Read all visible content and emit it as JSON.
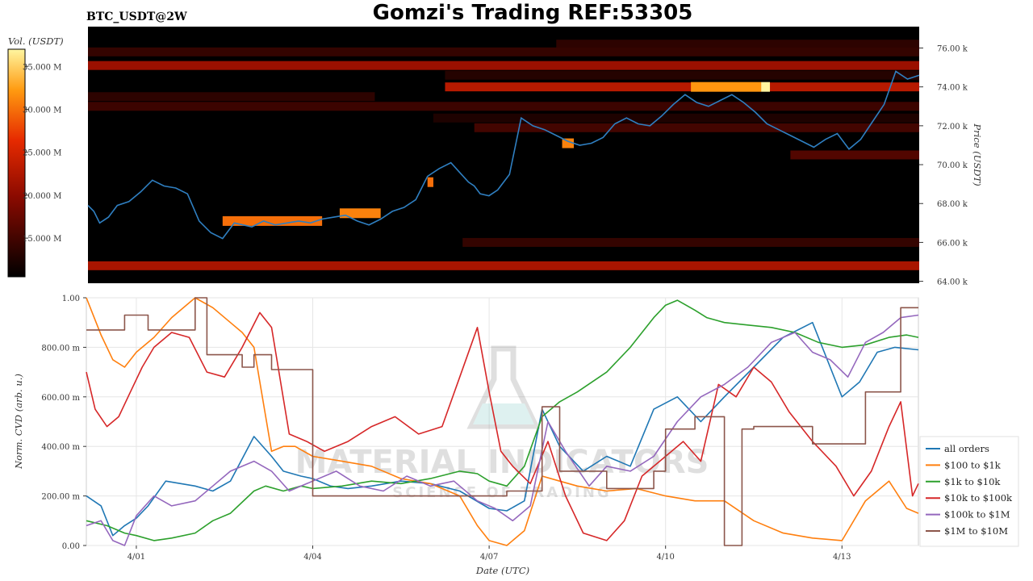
{
  "header": {
    "pair": "BTC_USDT@2W",
    "title": "Gomzi's Trading REF:53305"
  },
  "watermark": {
    "line1": "MATERIAL INDICATORS",
    "line2": "SCIENCE OF TRADING"
  },
  "colors": {
    "heatmap_low": "#000000",
    "heatmap_mid": "#c81e00",
    "heatmap_high": "#ffd54a",
    "price_line": "#2f7fc1",
    "all_orders": "#1f77b4",
    "r100_1k": "#ff7f0e",
    "r1k_10k": "#2ca02c",
    "r10k_100k": "#d62728",
    "r100k_1m": "#9467bd",
    "r1m_10m": "#8c564b"
  },
  "chart_data": [
    {
      "type": "heatmap",
      "title": "",
      "colorbar": {
        "label": "Vol. (USDT)",
        "ticks": [
          "15.000 M",
          "20.000 M",
          "25.000 M",
          "30.000 M",
          "35.000 M"
        ],
        "values": [
          15,
          20,
          25,
          30,
          35
        ],
        "range": [
          10.5,
          37
        ]
      },
      "ylabel": "Price (USDT)",
      "yticks": [
        "64.00 k",
        "66.00 k",
        "68.00 k",
        "70.00 k",
        "72.00 k",
        "74.00 k",
        "76.00 k"
      ],
      "ytick_values": [
        64,
        66,
        68,
        70,
        72,
        74,
        76
      ],
      "ylim": [
        63.9,
        77.1
      ],
      "xlim": [
        0,
        14.2
      ],
      "bands": [
        {
          "price": 76.2,
          "x0": 8.0,
          "x1": 14.2,
          "vol": 13.5
        },
        {
          "price": 75.8,
          "x0": 0.0,
          "x1": 14.2,
          "vol": 14.0
        },
        {
          "price": 75.1,
          "x0": 0.0,
          "x1": 14.2,
          "vol": 21.0
        },
        {
          "price": 74.6,
          "x0": 6.1,
          "x1": 14.2,
          "vol": 13.0
        },
        {
          "price": 74.0,
          "x0": 6.1,
          "x1": 14.2,
          "vol": 23.0
        },
        {
          "price": 73.5,
          "x0": 0.0,
          "x1": 4.9,
          "vol": 13.5
        },
        {
          "price": 73.0,
          "x0": 0.0,
          "x1": 14.2,
          "vol": 14.5
        },
        {
          "price": 72.4,
          "x0": 5.9,
          "x1": 14.2,
          "vol": 12.5
        },
        {
          "price": 71.9,
          "x0": 6.6,
          "x1": 14.2,
          "vol": 15.0
        },
        {
          "price": 70.5,
          "x0": 12.0,
          "x1": 14.2,
          "vol": 16.0
        },
        {
          "price": 66.0,
          "x0": 6.4,
          "x1": 14.2,
          "vol": 14.0
        },
        {
          "price": 64.8,
          "x0": 0.0,
          "x1": 14.2,
          "vol": 22.0
        }
      ],
      "hotspots": [
        {
          "x0": 2.3,
          "x1": 4.0,
          "price": 67.1,
          "vol": 30.0
        },
        {
          "x0": 4.3,
          "x1": 5.0,
          "price": 67.5,
          "vol": 31.0
        },
        {
          "x0": 10.3,
          "x1": 11.5,
          "price": 74.0,
          "vol": 32.0
        },
        {
          "x0": 11.5,
          "x1": 11.65,
          "price": 74.0,
          "vol": 37.0
        },
        {
          "x0": 8.1,
          "x1": 8.3,
          "price": 71.1,
          "vol": 31.0
        },
        {
          "x0": 5.8,
          "x1": 5.9,
          "price": 69.1,
          "vol": 30.0
        }
      ],
      "series": [
        {
          "name": "",
          "x": [
            0.0,
            0.1,
            0.2,
            0.35,
            0.5,
            0.7,
            0.9,
            1.1,
            1.3,
            1.5,
            1.7,
            1.9,
            2.1,
            2.3,
            2.5,
            2.8,
            3.0,
            3.2,
            3.4,
            3.6,
            3.8,
            4.0,
            4.2,
            4.4,
            4.6,
            4.8,
            5.0,
            5.2,
            5.4,
            5.6,
            5.8,
            6.0,
            6.2,
            6.35,
            6.5,
            6.6,
            6.7,
            6.85,
            7.0,
            7.2,
            7.4,
            7.6,
            7.8,
            8.0,
            8.2,
            8.4,
            8.6,
            8.8,
            9.0,
            9.2,
            9.4,
            9.6,
            9.8,
            10.0,
            10.2,
            10.4,
            10.6,
            10.8,
            11.0,
            11.2,
            11.4,
            11.6,
            11.8,
            12.0,
            12.2,
            12.4,
            12.6,
            12.8,
            13.0,
            13.2,
            13.4,
            13.6,
            13.8,
            14.0,
            14.2
          ],
          "y": [
            67.9,
            67.6,
            67.0,
            67.3,
            67.9,
            68.1,
            68.6,
            69.2,
            68.9,
            68.8,
            68.5,
            67.1,
            66.5,
            66.2,
            67.0,
            66.8,
            67.1,
            66.9,
            67.0,
            67.1,
            67.0,
            67.2,
            67.3,
            67.4,
            67.1,
            66.9,
            67.2,
            67.6,
            67.8,
            68.2,
            69.4,
            69.8,
            70.1,
            69.6,
            69.1,
            68.9,
            68.5,
            68.4,
            68.7,
            69.5,
            72.4,
            72.0,
            71.8,
            71.5,
            71.2,
            71.0,
            71.1,
            71.4,
            72.1,
            72.4,
            72.1,
            72.0,
            72.5,
            73.1,
            73.6,
            73.2,
            73.0,
            73.3,
            73.6,
            73.2,
            72.7,
            72.1,
            71.8,
            71.5,
            71.2,
            70.9,
            71.3,
            71.6,
            70.8,
            71.3,
            72.2,
            73.1,
            74.8,
            74.4,
            74.6
          ]
        }
      ]
    },
    {
      "type": "line",
      "title": "",
      "xlabel": "Date (UTC)",
      "ylabel": "Norm. CVD (arb. u.)",
      "xticks": [
        "4/01",
        "4/04",
        "4/07",
        "4/10",
        "4/13"
      ],
      "xtick_values": [
        0,
        3,
        6,
        9,
        12
      ],
      "xlim": [
        -0.85,
        13.3
      ],
      "yticks": [
        "0.00",
        "200.00 m",
        "400.00 m",
        "600.00 m",
        "800.00 m",
        "1.00"
      ],
      "ytick_values": [
        0.0,
        0.2,
        0.4,
        0.6,
        0.8,
        1.0
      ],
      "ylim": [
        0.0,
        1.0
      ],
      "grid": true,
      "legend": "right",
      "series": [
        {
          "name": "all orders",
          "x": [
            -0.85,
            -0.6,
            -0.4,
            -0.2,
            0.0,
            0.2,
            0.5,
            1.0,
            1.3,
            1.6,
            2.0,
            2.3,
            2.5,
            2.8,
            3.0,
            3.3,
            3.6,
            4.0,
            4.5,
            5.0,
            5.5,
            6.0,
            6.3,
            6.6,
            6.9,
            7.2,
            7.6,
            8.0,
            8.4,
            8.8,
            9.2,
            9.6,
            10.0,
            10.5,
            11.0,
            11.5,
            11.8,
            12.0,
            12.3,
            12.6,
            12.9,
            13.3
          ],
          "y": [
            0.2,
            0.16,
            0.04,
            0.08,
            0.11,
            0.16,
            0.26,
            0.24,
            0.22,
            0.26,
            0.44,
            0.36,
            0.3,
            0.28,
            0.27,
            0.24,
            0.23,
            0.24,
            0.26,
            0.25,
            0.22,
            0.15,
            0.14,
            0.18,
            0.55,
            0.4,
            0.3,
            0.36,
            0.32,
            0.55,
            0.6,
            0.5,
            0.6,
            0.72,
            0.84,
            0.9,
            0.72,
            0.6,
            0.66,
            0.78,
            0.8,
            0.79
          ]
        },
        {
          "name": "$100 to $1k",
          "x": [
            -0.85,
            -0.6,
            -0.4,
            -0.2,
            0.0,
            0.3,
            0.6,
            1.0,
            1.3,
            1.6,
            1.8,
            2.0,
            2.3,
            2.5,
            2.7,
            3.0,
            3.5,
            4.0,
            4.5,
            5.0,
            5.5,
            5.8,
            6.0,
            6.3,
            6.6,
            6.9,
            7.2,
            7.5,
            8.0,
            8.5,
            9.0,
            9.5,
            10.0,
            10.5,
            11.0,
            11.5,
            12.0,
            12.4,
            12.8,
            13.1,
            13.3
          ],
          "y": [
            1.0,
            0.85,
            0.75,
            0.72,
            0.78,
            0.84,
            0.92,
            1.0,
            0.96,
            0.9,
            0.86,
            0.8,
            0.38,
            0.4,
            0.4,
            0.36,
            0.34,
            0.32,
            0.27,
            0.25,
            0.2,
            0.08,
            0.02,
            0.0,
            0.06,
            0.28,
            0.26,
            0.24,
            0.22,
            0.23,
            0.2,
            0.18,
            0.18,
            0.1,
            0.05,
            0.03,
            0.02,
            0.18,
            0.26,
            0.15,
            0.13
          ]
        },
        {
          "name": "$1k to $10k",
          "x": [
            -0.85,
            -0.5,
            -0.2,
            0.0,
            0.3,
            0.6,
            1.0,
            1.3,
            1.6,
            2.0,
            2.2,
            2.5,
            2.8,
            3.0,
            3.5,
            4.0,
            4.5,
            5.0,
            5.5,
            5.8,
            6.0,
            6.3,
            6.6,
            6.9,
            7.2,
            7.5,
            8.0,
            8.4,
            8.8,
            9.0,
            9.2,
            9.5,
            9.7,
            10.0,
            10.4,
            10.8,
            11.2,
            11.6,
            12.0,
            12.4,
            12.8,
            13.1,
            13.3
          ],
          "y": [
            0.1,
            0.08,
            0.05,
            0.04,
            0.02,
            0.03,
            0.05,
            0.1,
            0.13,
            0.22,
            0.24,
            0.22,
            0.24,
            0.23,
            0.24,
            0.26,
            0.25,
            0.27,
            0.3,
            0.29,
            0.26,
            0.24,
            0.32,
            0.52,
            0.58,
            0.62,
            0.7,
            0.8,
            0.92,
            0.97,
            0.99,
            0.95,
            0.92,
            0.9,
            0.89,
            0.88,
            0.86,
            0.82,
            0.8,
            0.81,
            0.84,
            0.85,
            0.84
          ]
        },
        {
          "name": "$10k to $100k",
          "x": [
            -0.85,
            -0.7,
            -0.5,
            -0.3,
            -0.1,
            0.1,
            0.3,
            0.6,
            0.9,
            1.2,
            1.5,
            1.8,
            2.1,
            2.3,
            2.6,
            2.9,
            3.2,
            3.6,
            4.0,
            4.4,
            4.8,
            5.2,
            5.5,
            5.8,
            6.0,
            6.2,
            6.4,
            6.7,
            7.0,
            7.3,
            7.6,
            8.0,
            8.3,
            8.6,
            9.0,
            9.3,
            9.6,
            9.9,
            10.2,
            10.5,
            10.8,
            11.1,
            11.5,
            11.9,
            12.2,
            12.5,
            12.8,
            13.0,
            13.2,
            13.3
          ],
          "y": [
            0.7,
            0.55,
            0.48,
            0.52,
            0.62,
            0.72,
            0.8,
            0.86,
            0.84,
            0.7,
            0.68,
            0.8,
            0.94,
            0.88,
            0.45,
            0.42,
            0.38,
            0.42,
            0.48,
            0.52,
            0.45,
            0.48,
            0.68,
            0.88,
            0.62,
            0.38,
            0.32,
            0.25,
            0.42,
            0.2,
            0.05,
            0.02,
            0.1,
            0.28,
            0.36,
            0.42,
            0.34,
            0.65,
            0.6,
            0.72,
            0.66,
            0.54,
            0.42,
            0.32,
            0.2,
            0.3,
            0.48,
            0.58,
            0.2,
            0.25
          ]
        },
        {
          "name": "$100k to $1M",
          "x": [
            -0.85,
            -0.6,
            -0.4,
            -0.2,
            0.0,
            0.3,
            0.6,
            1.0,
            1.3,
            1.6,
            2.0,
            2.3,
            2.6,
            3.0,
            3.4,
            3.8,
            4.2,
            4.6,
            5.0,
            5.4,
            5.8,
            6.1,
            6.4,
            6.7,
            7.0,
            7.3,
            7.7,
            8.0,
            8.4,
            8.8,
            9.2,
            9.6,
            10.0,
            10.4,
            10.8,
            11.2,
            11.5,
            11.8,
            12.1,
            12.4,
            12.7,
            13.0,
            13.3
          ],
          "y": [
            0.08,
            0.1,
            0.02,
            0.0,
            0.12,
            0.2,
            0.16,
            0.18,
            0.24,
            0.3,
            0.34,
            0.3,
            0.22,
            0.26,
            0.3,
            0.24,
            0.22,
            0.28,
            0.24,
            0.26,
            0.18,
            0.15,
            0.1,
            0.16,
            0.5,
            0.38,
            0.24,
            0.32,
            0.3,
            0.36,
            0.5,
            0.6,
            0.65,
            0.72,
            0.82,
            0.86,
            0.78,
            0.75,
            0.68,
            0.82,
            0.86,
            0.92,
            0.93
          ]
        },
        {
          "name": "$1M to $10M",
          "x": [
            -0.85,
            -0.2,
            -0.2,
            0.2,
            0.2,
            1.0,
            1.0,
            1.2,
            1.2,
            1.8,
            1.8,
            2.0,
            2.0,
            2.3,
            2.3,
            2.5,
            2.5,
            3.0,
            3.0,
            3.3,
            3.3,
            4.8,
            4.8,
            6.3,
            6.3,
            6.9,
            6.9,
            7.2,
            7.2,
            8.0,
            8.0,
            8.8,
            8.8,
            9.0,
            9.0,
            9.5,
            9.5,
            10.0,
            10.0,
            10.3,
            10.3,
            10.5,
            10.5,
            11.5,
            11.5,
            12.0,
            12.0,
            12.4,
            12.4,
            13.0,
            13.0,
            13.3
          ],
          "y": [
            0.87,
            0.87,
            0.93,
            0.93,
            0.87,
            0.87,
            1.0,
            1.0,
            0.77,
            0.77,
            0.72,
            0.72,
            0.77,
            0.77,
            0.71,
            0.71,
            0.71,
            0.71,
            0.2,
            0.2,
            0.2,
            0.2,
            0.2,
            0.2,
            0.22,
            0.22,
            0.56,
            0.56,
            0.3,
            0.3,
            0.23,
            0.23,
            0.3,
            0.3,
            0.47,
            0.47,
            0.52,
            0.52,
            0.0,
            0.0,
            0.47,
            0.47,
            0.48,
            0.48,
            0.41,
            0.41,
            0.41,
            0.41,
            0.62,
            0.62,
            0.96,
            0.96
          ]
        }
      ]
    }
  ]
}
